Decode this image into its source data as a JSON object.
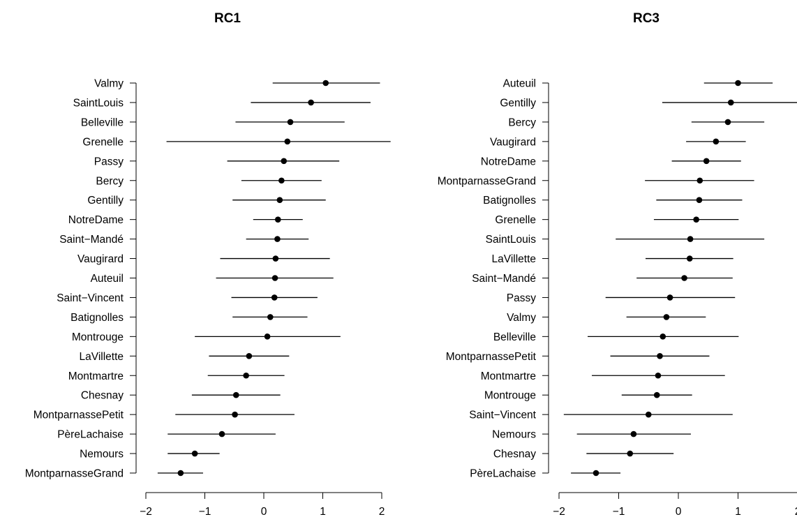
{
  "chart_data": [
    {
      "type": "scatter",
      "title": "RC1",
      "xlim": [
        -2,
        2
      ],
      "xticks": [
        -2,
        -1,
        0,
        1,
        2
      ],
      "xtick_labels": [
        "−2",
        "−1",
        "0",
        "1",
        "2"
      ],
      "grid": false,
      "rows": [
        {
          "label": "Valmy",
          "estimate": 1.05,
          "lower": 0.15,
          "upper": 1.97
        },
        {
          "label": "SaintLouis",
          "estimate": 0.8,
          "lower": -0.22,
          "upper": 1.81
        },
        {
          "label": "Belleville",
          "estimate": 0.45,
          "lower": -0.48,
          "upper": 1.37
        },
        {
          "label": "Grenelle",
          "estimate": 0.4,
          "lower": -1.65,
          "upper": 2.15
        },
        {
          "label": "Passy",
          "estimate": 0.34,
          "lower": -0.62,
          "upper": 1.28
        },
        {
          "label": "Bercy",
          "estimate": 0.3,
          "lower": -0.38,
          "upper": 0.98
        },
        {
          "label": "Gentilly",
          "estimate": 0.27,
          "lower": -0.53,
          "upper": 1.05
        },
        {
          "label": "NotreDame",
          "estimate": 0.24,
          "lower": -0.18,
          "upper": 0.66
        },
        {
          "label": "Saint−Mandé",
          "estimate": 0.23,
          "lower": -0.3,
          "upper": 0.76
        },
        {
          "label": "Vaugirard",
          "estimate": 0.2,
          "lower": -0.74,
          "upper": 1.12
        },
        {
          "label": "Auteuil",
          "estimate": 0.19,
          "lower": -0.81,
          "upper": 1.18
        },
        {
          "label": "Saint−Vincent",
          "estimate": 0.18,
          "lower": -0.55,
          "upper": 0.91
        },
        {
          "label": "Batignolles",
          "estimate": 0.11,
          "lower": -0.53,
          "upper": 0.74
        },
        {
          "label": "Montrouge",
          "estimate": 0.06,
          "lower": -1.17,
          "upper": 1.3
        },
        {
          "label": "LaVillette",
          "estimate": -0.25,
          "lower": -0.93,
          "upper": 0.43
        },
        {
          "label": "Montmartre",
          "estimate": -0.3,
          "lower": -0.95,
          "upper": 0.35
        },
        {
          "label": "Chesnay",
          "estimate": -0.47,
          "lower": -1.22,
          "upper": 0.28
        },
        {
          "label": "MontparnassePetit",
          "estimate": -0.49,
          "lower": -1.5,
          "upper": 0.52
        },
        {
          "label": "PèreLachaise",
          "estimate": -0.71,
          "lower": -1.63,
          "upper": 0.2
        },
        {
          "label": "Nemours",
          "estimate": -1.17,
          "lower": -1.63,
          "upper": -0.75
        },
        {
          "label": "MontparnasseGrand",
          "estimate": -1.41,
          "lower": -1.8,
          "upper": -1.03
        }
      ]
    },
    {
      "type": "scatter",
      "title": "RC3",
      "xlim": [
        -2,
        2
      ],
      "xticks": [
        -2,
        -1,
        0,
        1,
        2
      ],
      "xtick_labels": [
        "−2",
        "−1",
        "0",
        "1",
        "2"
      ],
      "grid": false,
      "rows": [
        {
          "label": "Auteuil",
          "estimate": 1.0,
          "lower": 0.43,
          "upper": 1.58
        },
        {
          "label": "Gentilly",
          "estimate": 0.88,
          "lower": -0.27,
          "upper": 2.04
        },
        {
          "label": "Bercy",
          "estimate": 0.83,
          "lower": 0.22,
          "upper": 1.44
        },
        {
          "label": "Vaugirard",
          "estimate": 0.63,
          "lower": 0.13,
          "upper": 1.13
        },
        {
          "label": "NotreDame",
          "estimate": 0.47,
          "lower": -0.11,
          "upper": 1.05
        },
        {
          "label": "MontparnasseGrand",
          "estimate": 0.36,
          "lower": -0.56,
          "upper": 1.27
        },
        {
          "label": "Batignolles",
          "estimate": 0.35,
          "lower": -0.37,
          "upper": 1.07
        },
        {
          "label": "Grenelle",
          "estimate": 0.3,
          "lower": -0.41,
          "upper": 1.01
        },
        {
          "label": "SaintLouis",
          "estimate": 0.2,
          "lower": -1.05,
          "upper": 1.44
        },
        {
          "label": "LaVillette",
          "estimate": 0.19,
          "lower": -0.55,
          "upper": 0.92
        },
        {
          "label": "Saint−Mandé",
          "estimate": 0.1,
          "lower": -0.7,
          "upper": 0.91
        },
        {
          "label": "Passy",
          "estimate": -0.14,
          "lower": -1.22,
          "upper": 0.95
        },
        {
          "label": "Valmy",
          "estimate": -0.2,
          "lower": -0.87,
          "upper": 0.46
        },
        {
          "label": "Belleville",
          "estimate": -0.26,
          "lower": -1.52,
          "upper": 1.01
        },
        {
          "label": "MontparnassePetit",
          "estimate": -0.31,
          "lower": -1.14,
          "upper": 0.52
        },
        {
          "label": "Montmartre",
          "estimate": -0.34,
          "lower": -1.45,
          "upper": 0.78
        },
        {
          "label": "Montrouge",
          "estimate": -0.36,
          "lower": -0.95,
          "upper": 0.23
        },
        {
          "label": "Saint−Vincent",
          "estimate": -0.5,
          "lower": -1.92,
          "upper": 0.91
        },
        {
          "label": "Nemours",
          "estimate": -0.75,
          "lower": -1.7,
          "upper": 0.21
        },
        {
          "label": "Chesnay",
          "estimate": -0.81,
          "lower": -1.54,
          "upper": -0.08
        },
        {
          "label": "PèreLachaise",
          "estimate": -1.38,
          "lower": -1.8,
          "upper": -0.97
        }
      ]
    }
  ]
}
